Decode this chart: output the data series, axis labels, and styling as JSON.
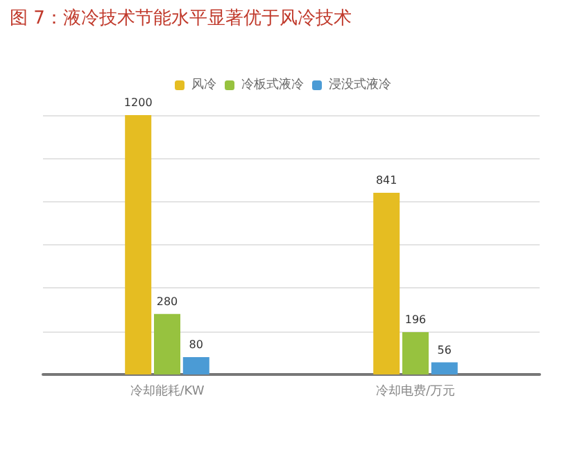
{
  "chart_data": {
    "type": "bar",
    "title": "图 7：液冷技术节能水平显著优于风冷技术",
    "categories": [
      "冷却能耗/KW",
      "冷却电费/万元"
    ],
    "series": [
      {
        "name": "风冷",
        "color": "#e5bd22",
        "values": [
          1200,
          841
        ]
      },
      {
        "name": "冷板式液冷",
        "color": "#97c23f",
        "values": [
          280,
          196
        ]
      },
      {
        "name": "浸没式液冷",
        "color": "#4b9bd5",
        "values": [
          80,
          56
        ]
      }
    ],
    "ylim": [
      0,
      1200
    ],
    "yticks": [
      0,
      200,
      400,
      600,
      800,
      1000,
      1200
    ],
    "tick_labels": "x",
    "grid": "y",
    "legend": "top",
    "data_labels": true
  }
}
